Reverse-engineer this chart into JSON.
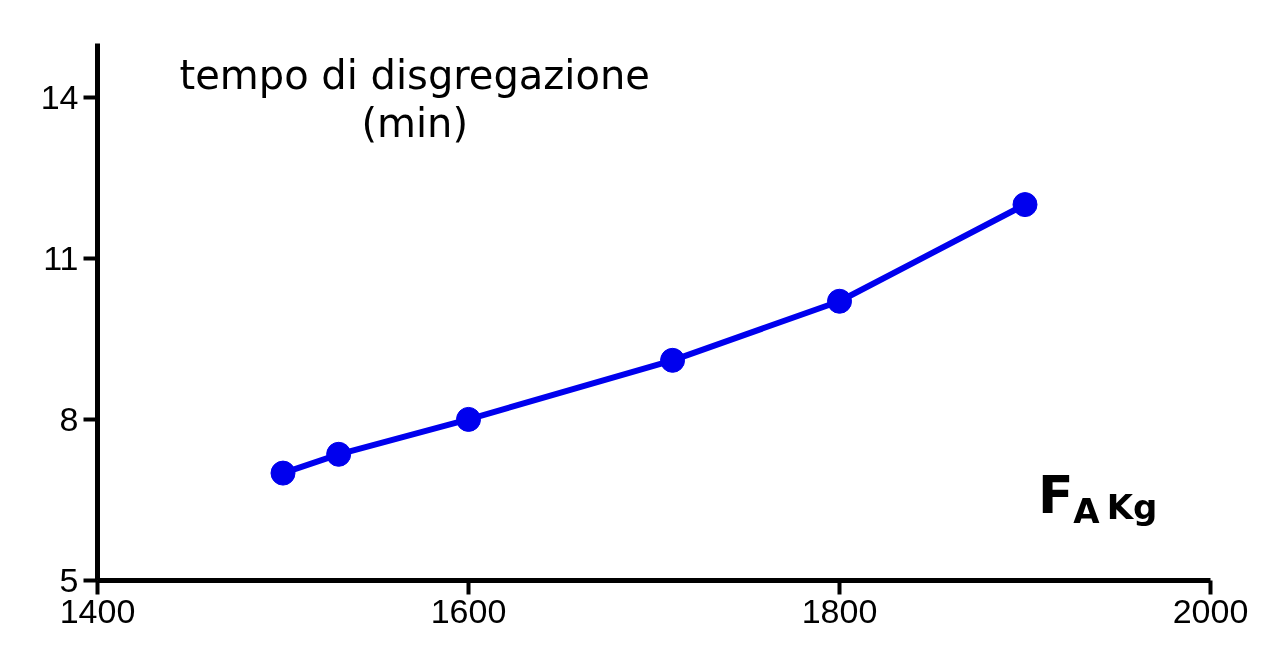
{
  "chart_data": {
    "type": "line",
    "ylabel": "tempo di disgregazione (min)",
    "xlabel": "F$_{A}$ Kg",
    "x": [
      1500,
      1530,
      1600,
      1710,
      1800,
      1900
    ],
    "series": [
      {
        "color": "#0000ee",
        "values": [
          7.0,
          7.35,
          8.0,
          9.1,
          10.2,
          12.0
        ]
      }
    ],
    "xlim": [
      1400,
      2000
    ],
    "ylim": [
      5,
      15
    ],
    "xticks": [
      1400,
      1600,
      1800,
      2000
    ],
    "yticks": [
      5,
      8,
      11,
      14
    ],
    "marker": "circle",
    "line_style": "solid"
  }
}
